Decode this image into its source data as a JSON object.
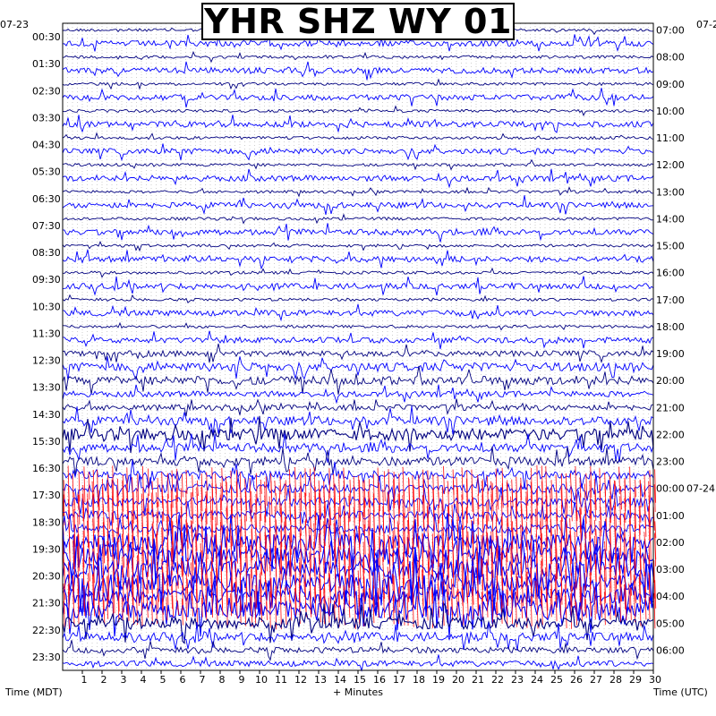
{
  "chart_data": {
    "type": "line",
    "title": "YHR SHZ WY 01",
    "xlabel": "+ Minutes",
    "left_axis_label": "Time (MDT)",
    "right_axis_label": "Time (UTC)",
    "left_date_label": "07-23",
    "right_date_label": "07-2",
    "right_date_change_label": "07-24",
    "x_ticks": [
      "1",
      "2",
      "3",
      "4",
      "5",
      "6",
      "7",
      "8",
      "9",
      "10",
      "11",
      "12",
      "13",
      "14",
      "15",
      "16",
      "17",
      "18",
      "19",
      "20",
      "21",
      "22",
      "23",
      "24",
      "25",
      "26",
      "27",
      "28",
      "29",
      "30"
    ],
    "xlim": [
      0,
      30
    ],
    "left_time_labels": [
      "00:30",
      "01:30",
      "02:30",
      "03:30",
      "04:30",
      "05:30",
      "06:30",
      "07:30",
      "08:30",
      "09:30",
      "10:30",
      "11:30",
      "12:30",
      "13:30",
      "14:30",
      "15:30",
      "16:30",
      "17:30",
      "18:30",
      "19:30",
      "20:30",
      "21:30",
      "22:30",
      "23:30"
    ],
    "right_time_labels": [
      "07:00",
      "08:00",
      "09:00",
      "10:00",
      "11:00",
      "12:00",
      "13:00",
      "14:00",
      "15:00",
      "16:00",
      "17:00",
      "18:00",
      "19:00",
      "20:00",
      "21:00",
      "22:00",
      "23:00",
      "00:00",
      "01:00",
      "02:00",
      "03:00",
      "04:00",
      "05:00",
      "06:00"
    ],
    "trace_colors": [
      "#000080",
      "#0000ff",
      "#ff0000",
      "#1a1a60"
    ],
    "trace_count": 48,
    "trace_amplitude_levels": [
      1,
      2,
      1,
      2,
      1,
      2,
      1,
      2,
      1,
      2,
      1,
      2,
      1,
      2,
      1,
      2,
      1,
      2,
      1,
      2,
      1,
      2,
      1,
      2,
      2,
      3,
      3,
      2,
      2,
      3,
      4,
      3,
      3,
      3,
      3,
      3,
      3,
      3,
      6,
      6,
      6,
      6,
      5,
      6,
      4,
      3,
      2,
      2
    ],
    "red_clipped_traces": [
      34,
      35,
      36,
      37,
      38,
      39,
      40,
      41,
      42,
      43
    ]
  }
}
